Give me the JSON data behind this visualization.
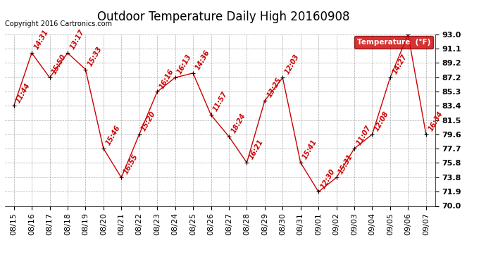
{
  "title": "Outdoor Temperature Daily High 20160908",
  "copyright_text": "Copyright 2016 Cartronics.com",
  "legend_label": "Temperature  (°F)",
  "dates": [
    "08/15",
    "08/16",
    "08/17",
    "08/18",
    "08/19",
    "08/20",
    "08/21",
    "08/22",
    "08/23",
    "08/24",
    "08/25",
    "08/26",
    "08/27",
    "08/28",
    "08/29",
    "08/30",
    "08/31",
    "09/01",
    "09/02",
    "09/03",
    "09/04",
    "09/05",
    "09/06",
    "09/07"
  ],
  "temps": [
    83.4,
    90.5,
    87.2,
    90.5,
    88.3,
    77.7,
    73.8,
    79.6,
    85.3,
    87.2,
    87.8,
    82.2,
    79.3,
    75.8,
    84.1,
    87.2,
    75.8,
    71.9,
    73.8,
    77.7,
    79.6,
    87.2,
    93.0,
    79.6
  ],
  "time_labels": [
    "11:44",
    "14:31",
    "15:50",
    "13:17",
    "15:33",
    "15:46",
    "16:55",
    "15:20",
    "16:16",
    "16:13",
    "14:36",
    "11:57",
    "18:24",
    "16:21",
    "13:25",
    "12:03",
    "15:41",
    "12:30",
    "15:31",
    "11:07",
    "12:08",
    "14:27",
    "",
    "16:34"
  ],
  "ylim": [
    70.0,
    93.0
  ],
  "yticks": [
    70.0,
    71.9,
    73.8,
    75.8,
    77.7,
    79.6,
    81.5,
    83.4,
    85.3,
    87.2,
    89.2,
    91.1,
    93.0
  ],
  "line_color": "#cc0000",
  "bg_color": "#ffffff",
  "grid_color": "#aaaaaa",
  "title_fontsize": 12,
  "tick_fontsize": 8,
  "annotation_fontsize": 7,
  "legend_bg": "#cc0000",
  "legend_text_color": "#ffffff",
  "copyright_fontsize": 7
}
